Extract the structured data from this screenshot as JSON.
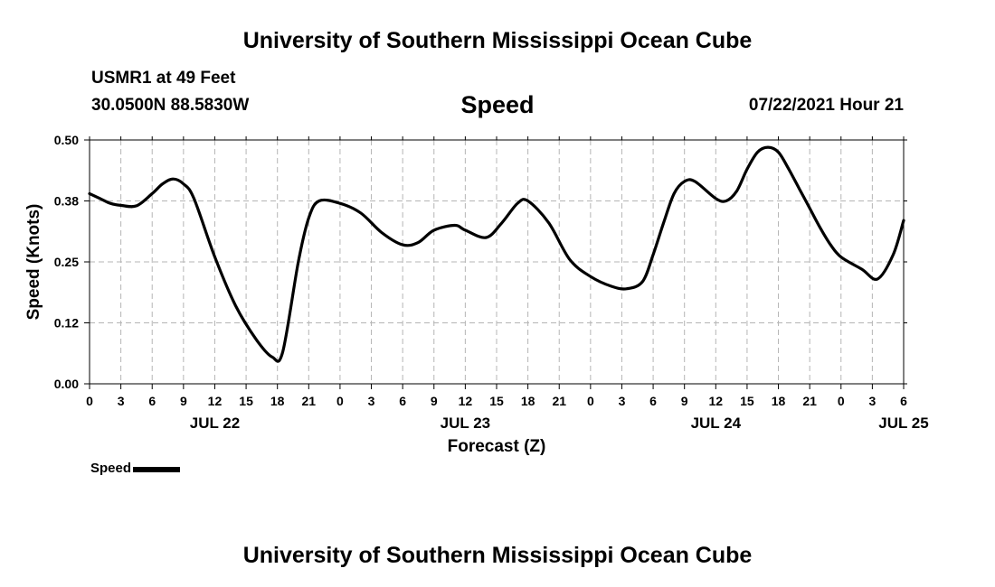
{
  "header": {
    "title": "University of Southern Mississippi Ocean Cube",
    "station": "USMR1 at 49 Feet",
    "coords": "30.0500N  88.5830W",
    "variable": "Speed",
    "datestamp": "07/22/2021 Hour 21"
  },
  "footer": {
    "title": "University of Southern Mississippi Ocean Cube"
  },
  "legend": {
    "label": "Speed"
  },
  "chart_data": {
    "type": "line",
    "xlabel": "Forecast (Z)",
    "ylabel": "Speed (Knots)",
    "x_unit": "hours from 07/22/2021 00Z",
    "xlim": [
      0,
      78
    ],
    "ylim": [
      0,
      0.5
    ],
    "y_ticks": [
      "0.00",
      "0.12",
      "0.25",
      "0.38",
      "0.50"
    ],
    "y_tick_values": [
      0,
      0.125,
      0.25,
      0.375,
      0.5
    ],
    "x_tick_labels": [
      "0",
      "3",
      "6",
      "9",
      "12",
      "15",
      "18",
      "21",
      "0",
      "3",
      "6",
      "9",
      "12",
      "15",
      "18",
      "21",
      "0",
      "3",
      "6",
      "9",
      "12",
      "15",
      "18",
      "21",
      "0",
      "3",
      "6"
    ],
    "date_labels": [
      {
        "label": "JUL 22",
        "hour": 12
      },
      {
        "label": "JUL 23",
        "hour": 36
      },
      {
        "label": "JUL 24",
        "hour": 60
      },
      {
        "label": "JUL 25",
        "hour": 78
      }
    ],
    "grid": true,
    "series": [
      {
        "name": "Speed",
        "color": "#000000",
        "x": [
          0,
          1,
          2,
          3,
          4.5,
          6,
          7,
          8,
          9,
          10,
          12,
          14,
          16,
          17.5,
          18.5,
          20,
          21,
          22,
          24,
          26,
          28,
          30,
          31.5,
          33,
          35,
          36,
          38,
          39.5,
          41,
          42,
          44,
          46,
          48,
          50,
          51.5,
          53,
          54,
          55,
          56,
          57,
          58,
          60,
          61,
          62,
          63,
          64,
          65,
          66,
          67,
          68,
          69,
          70,
          71,
          72,
          74,
          75.5,
          77,
          78
        ],
        "y": [
          0.39,
          0.38,
          0.37,
          0.366,
          0.365,
          0.39,
          0.41,
          0.42,
          0.41,
          0.38,
          0.26,
          0.16,
          0.09,
          0.055,
          0.065,
          0.25,
          0.34,
          0.375,
          0.37,
          0.35,
          0.31,
          0.285,
          0.29,
          0.315,
          0.325,
          0.315,
          0.3,
          0.33,
          0.37,
          0.375,
          0.33,
          0.255,
          0.22,
          0.2,
          0.195,
          0.21,
          0.265,
          0.33,
          0.39,
          0.415,
          0.415,
          0.38,
          0.375,
          0.395,
          0.44,
          0.475,
          0.485,
          0.475,
          0.44,
          0.4,
          0.36,
          0.32,
          0.285,
          0.26,
          0.235,
          0.215,
          0.265,
          0.335
        ]
      }
    ]
  }
}
